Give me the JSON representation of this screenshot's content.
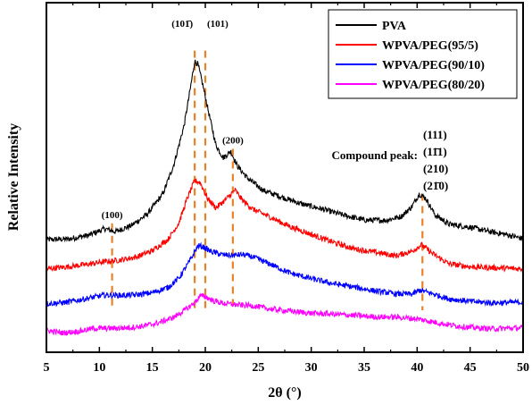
{
  "chart_data": {
    "type": "line",
    "xlabel": "2θ (°)",
    "ylabel": "Relative Intensity",
    "xlim": [
      5,
      50
    ],
    "xticks": [
      5,
      10,
      15,
      20,
      25,
      30,
      35,
      40,
      45,
      50
    ],
    "ylim": [
      0,
      100
    ],
    "y_tick_labels_shown": false,
    "legend_position": "top-right",
    "series": [
      {
        "name": "PVA",
        "color": "#000000",
        "points": [
          [
            5,
            31.5
          ],
          [
            7,
            31.7
          ],
          [
            9,
            33.0
          ],
          [
            10.5,
            35.2
          ],
          [
            11.5,
            34.2
          ],
          [
            13,
            36.2
          ],
          [
            14.5,
            40.0
          ],
          [
            16,
            46.9
          ],
          [
            17,
            56.4
          ],
          [
            18,
            69.9
          ],
          [
            18.5,
            80.4
          ],
          [
            19,
            91.4
          ],
          [
            19.3,
            90.5
          ],
          [
            19.8,
            82.9
          ],
          [
            20.3,
            74.5
          ],
          [
            21,
            63.3
          ],
          [
            21.7,
            59.0
          ],
          [
            22.4,
            61.2
          ],
          [
            23,
            56.4
          ],
          [
            24,
            52.1
          ],
          [
            25.5,
            48.0
          ],
          [
            27,
            46.1
          ],
          [
            29,
            43.6
          ],
          [
            31,
            41.8
          ],
          [
            33,
            39.8
          ],
          [
            35,
            38.1
          ],
          [
            37,
            38.0
          ],
          [
            38.5,
            39.3
          ],
          [
            39.5,
            42.6
          ],
          [
            40.2,
            46.9
          ],
          [
            40.8,
            45.4
          ],
          [
            41.7,
            39.8
          ],
          [
            43,
            36.7
          ],
          [
            45,
            35.7
          ],
          [
            47,
            34.1
          ],
          [
            48.5,
            33.2
          ],
          [
            50,
            31.8
          ]
        ]
      },
      {
        "name": "WPVA/PEG(95/5)",
        "color": "#ff0000",
        "points": [
          [
            5,
            21.7
          ],
          [
            7,
            22.4
          ],
          [
            9,
            23.3
          ],
          [
            10.5,
            24.1
          ],
          [
            12,
            24.7
          ],
          [
            13.5,
            25.7
          ],
          [
            15,
            27.8
          ],
          [
            16.5,
            31.7
          ],
          [
            17.5,
            37.1
          ],
          [
            18.3,
            45.4
          ],
          [
            19,
            51.3
          ],
          [
            19.5,
            50.8
          ],
          [
            20.2,
            45.4
          ],
          [
            21,
            42.2
          ],
          [
            22,
            45.2
          ],
          [
            22.8,
            48.2
          ],
          [
            23.5,
            44.8
          ],
          [
            24.5,
            41.7
          ],
          [
            26,
            39.3
          ],
          [
            28,
            35.9
          ],
          [
            30,
            33.3
          ],
          [
            32,
            30.7
          ],
          [
            34,
            28.5
          ],
          [
            36,
            27.3
          ],
          [
            38,
            26.1
          ],
          [
            39.5,
            27.6
          ],
          [
            40.4,
            29.8
          ],
          [
            41.5,
            26.7
          ],
          [
            43,
            23.4
          ],
          [
            45,
            22.4
          ],
          [
            47,
            22.1
          ],
          [
            50,
            21.7
          ]
        ]
      },
      {
        "name": "WPVA/PEG(90/10)",
        "color": "#0000ff",
        "points": [
          [
            5,
            10.0
          ],
          [
            7,
            10.5
          ],
          [
            9,
            11.9
          ],
          [
            10.5,
            12.9
          ],
          [
            12,
            12.8
          ],
          [
            13.5,
            13.0
          ],
          [
            15,
            13.7
          ],
          [
            16.5,
            15.5
          ],
          [
            17.5,
            18.6
          ],
          [
            18.5,
            24.1
          ],
          [
            19.3,
            29.5
          ],
          [
            19.8,
            29.1
          ],
          [
            20.5,
            27.6
          ],
          [
            21.5,
            26.5
          ],
          [
            22.5,
            26.2
          ],
          [
            23.5,
            26.5
          ],
          [
            24.5,
            25.7
          ],
          [
            26,
            23.5
          ],
          [
            28,
            20.3
          ],
          [
            30,
            18.4
          ],
          [
            32,
            16.8
          ],
          [
            34,
            15.6
          ],
          [
            36,
            14.3
          ],
          [
            38,
            13.3
          ],
          [
            39.5,
            13.2
          ],
          [
            40.3,
            14.5
          ],
          [
            41.5,
            13.3
          ],
          [
            43,
            11.6
          ],
          [
            45,
            10.8
          ],
          [
            47,
            10.3
          ],
          [
            50,
            10.5
          ]
        ]
      },
      {
        "name": "WPVA/PEG(80/20)",
        "color": "#ff00ff",
        "points": [
          [
            5,
            1.0
          ],
          [
            6.5,
            0.2
          ],
          [
            8,
            0.7
          ],
          [
            9.5,
            1.7
          ],
          [
            11,
            1.7
          ],
          [
            12.5,
            1.9
          ],
          [
            14,
            2.4
          ],
          [
            15.5,
            3.5
          ],
          [
            17,
            5.4
          ],
          [
            18,
            7.7
          ],
          [
            19,
            10.3
          ],
          [
            19.5,
            12.6
          ],
          [
            20,
            12.4
          ],
          [
            20.8,
            10.9
          ],
          [
            21.8,
            10.1
          ],
          [
            23,
            9.6
          ],
          [
            24.5,
            9.3
          ],
          [
            26,
            8.3
          ],
          [
            28,
            7.5
          ],
          [
            30,
            6.8
          ],
          [
            32,
            6.5
          ],
          [
            34,
            6.1
          ],
          [
            36,
            5.6
          ],
          [
            38,
            5.5
          ],
          [
            40,
            4.9
          ],
          [
            41.5,
            3.9
          ],
          [
            43,
            2.9
          ],
          [
            45,
            2.0
          ],
          [
            47,
            1.6
          ],
          [
            50,
            1.9
          ]
        ]
      }
    ],
    "peak_markers": [
      {
        "label": "(100)",
        "x": 11.2,
        "y_top": 37
      },
      {
        "label": "(101̄)",
        "x": 19.0,
        "y_top": 95
      },
      {
        "label": "(101)",
        "x": 20.0,
        "y_top": 95
      },
      {
        "label": "(200)",
        "x": 22.6,
        "y_top": 62
      },
      {
        "label": "",
        "x": 40.5,
        "y_top": 47
      }
    ],
    "compound_peak": {
      "label": "Compound peak:",
      "planes": [
        "(111)",
        "(11̄1)",
        "(210)",
        "(21̄0)"
      ]
    }
  }
}
